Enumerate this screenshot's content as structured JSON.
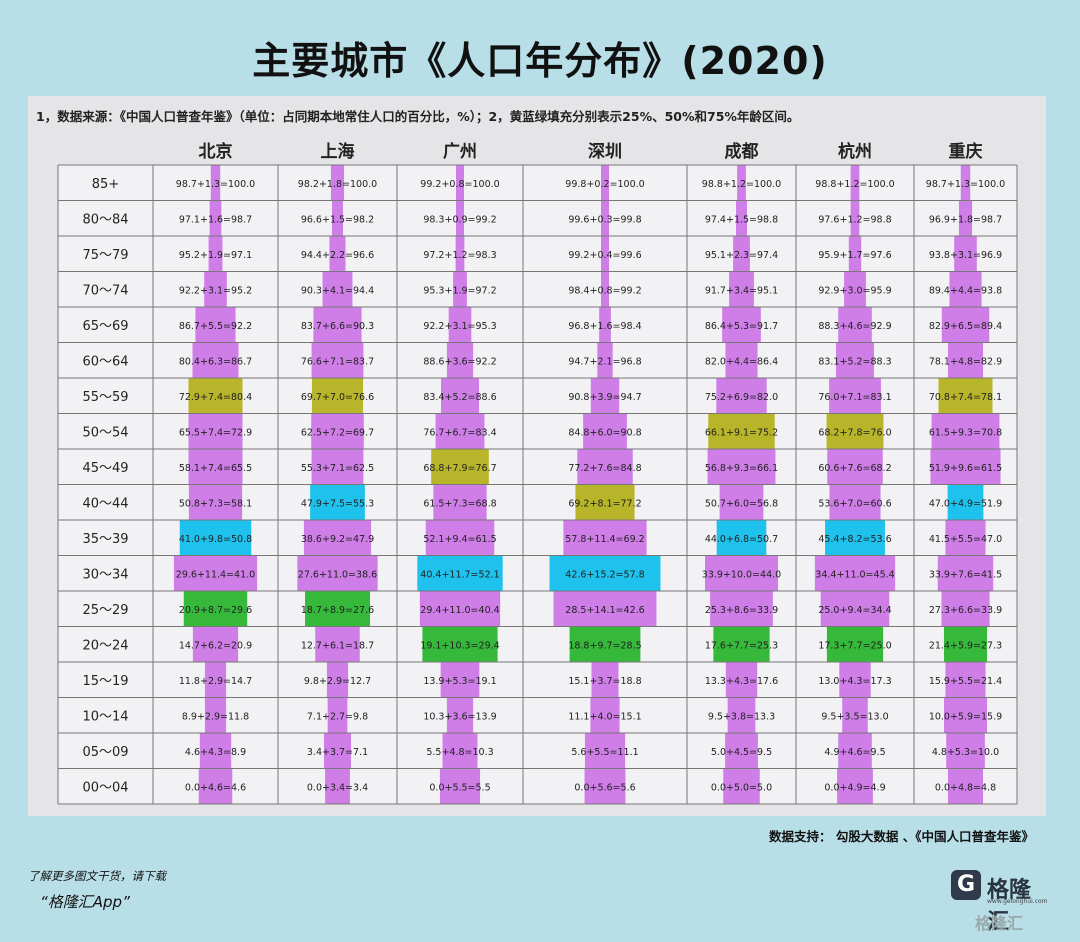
{
  "title": "主要城市《人口年分布》(2020)",
  "note": "1，数据来源：《中国人口普查年鉴》（单位：占同期本地常住人口的百分比，%）；2，黄蓝绿填充分别表示25%、50%和75%年龄区间。",
  "source": "数据支持：  勾股大数据 、《中国人口普查年鉴》",
  "promo_line1": "了解更多图文干货，请下载",
  "promo_line2": "“格隆汇App”",
  "logo": {
    "mark": "G",
    "text": "格隆汇",
    "url": "www.gelonghui.com"
  },
  "corner_mark": "格隆汇",
  "colors": {
    "purple": "#cf7ee8",
    "yellow": "#b9b52a",
    "blue": "#1ec2ec",
    "green": "#36b83a",
    "grid": "#777777"
  },
  "chart_data": {
    "type": "table",
    "age_groups": [
      "85+",
      "80～84",
      "75～79",
      "70～74",
      "65～69",
      "60～64",
      "55～59",
      "50～54",
      "45～49",
      "40～44",
      "35～39",
      "30～34",
      "25～29",
      "20～24",
      "15～19",
      "10～14",
      "05～09",
      "00～04"
    ],
    "cities": [
      {
        "name": "北京",
        "cells": [
          "98.7+1.3=100.0",
          "97.1+1.6=98.7",
          "95.2+1.9=97.1",
          "92.2+3.1=95.2",
          "86.7+5.5=92.2",
          "80.4+6.3=86.7",
          "72.9+7.4=80.4",
          "65.5+7.4=72.9",
          "58.1+7.4=65.5",
          "50.8+7.3=58.1",
          "41.0+9.8=50.8",
          "29.6+11.4=41.0",
          "20.9+8.7=29.6",
          "14.7+6.2=20.9",
          "11.8+2.9=14.7",
          "8.9+2.9=11.8",
          "4.6+4.3=8.9",
          "0.0+4.6=4.6"
        ],
        "values": [
          1.3,
          1.6,
          1.9,
          3.1,
          5.5,
          6.3,
          7.4,
          7.4,
          7.4,
          7.3,
          9.8,
          11.4,
          8.7,
          6.2,
          2.9,
          2.9,
          4.3,
          4.6
        ],
        "highlights": {
          "yellow": 6,
          "blue": 10,
          "green": 12
        }
      },
      {
        "name": "上海",
        "cells": [
          "98.2+1.8=100.0",
          "96.6+1.5=98.2",
          "94.4+2.2=96.6",
          "90.3+4.1=94.4",
          "83.7+6.6=90.3",
          "76.6+7.1=83.7",
          "69.7+7.0=76.6",
          "62.5+7.2=69.7",
          "55.3+7.1=62.5",
          "47.9+7.5=55.3",
          "38.6+9.2=47.9",
          "27.6+11.0=38.6",
          "18.7+8.9=27.6",
          "12.7+6.1=18.7",
          "9.8+2.9=12.7",
          "7.1+2.7=9.8",
          "3.4+3.7=7.1",
          "0.0+3.4=3.4"
        ],
        "values": [
          1.8,
          1.5,
          2.2,
          4.1,
          6.6,
          7.1,
          7.0,
          7.2,
          7.1,
          7.5,
          9.2,
          11.0,
          8.9,
          6.1,
          2.9,
          2.7,
          3.7,
          3.4
        ],
        "highlights": {
          "yellow": 6,
          "blue": 9,
          "green": 12
        }
      },
      {
        "name": "广州",
        "cells": [
          "99.2+0.8=100.0",
          "98.3+0.9=99.2",
          "97.2+1.2=98.3",
          "95.3+1.9=97.2",
          "92.2+3.1=95.3",
          "88.6+3.6=92.2",
          "83.4+5.2=88.6",
          "76.7+6.7=83.4",
          "68.8+7.9=76.7",
          "61.5+7.3=68.8",
          "52.1+9.4=61.5",
          "40.4+11.7=52.1",
          "29.4+11.0=40.4",
          "19.1+10.3=29.4",
          "13.9+5.3=19.1",
          "10.3+3.6=13.9",
          "5.5+4.8=10.3",
          "0.0+5.5=5.5"
        ],
        "values": [
          0.8,
          0.9,
          1.2,
          1.9,
          3.1,
          3.6,
          5.2,
          6.7,
          7.9,
          7.3,
          9.4,
          11.7,
          11.0,
          10.3,
          5.3,
          3.6,
          4.8,
          5.5
        ],
        "highlights": {
          "yellow": 8,
          "blue": 11,
          "green": 13
        }
      },
      {
        "name": "深圳",
        "cells": [
          "99.8+0.2=100.0",
          "99.6+0.3=99.8",
          "99.2+0.4=99.6",
          "98.4+0.8=99.2",
          "96.8+1.6=98.4",
          "94.7+2.1=96.8",
          "90.8+3.9=94.7",
          "84.8+6.0=90.8",
          "77.2+7.6=84.8",
          "69.2+8.1=77.2",
          "57.8+11.4=69.2",
          "42.6+15.2=57.8",
          "28.5+14.1=42.6",
          "18.8+9.7=28.5",
          "15.1+3.7=18.8",
          "11.1+4.0=15.1",
          "5.6+5.5=11.1",
          "0.0+5.6=5.6"
        ],
        "values": [
          0.2,
          0.3,
          0.4,
          0.8,
          1.6,
          2.1,
          3.9,
          6.0,
          7.6,
          8.1,
          11.4,
          15.2,
          14.1,
          9.7,
          3.7,
          4.0,
          5.5,
          5.6
        ],
        "highlights": {
          "yellow": 9,
          "blue": 11,
          "green": 13
        }
      },
      {
        "name": "成都",
        "cells": [
          "98.8+1.2=100.0",
          "97.4+1.5=98.8",
          "95.1+2.3=97.4",
          "91.7+3.4=95.1",
          "86.4+5.3=91.7",
          "82.0+4.4=86.4",
          "75.2+6.9=82.0",
          "66.1+9.1=75.2",
          "56.8+9.3=66.1",
          "50.7+6.0=56.8",
          "44.0+6.8=50.7",
          "33.9+10.0=44.0",
          "25.3+8.6=33.9",
          "17.6+7.7=25.3",
          "13.3+4.3=17.6",
          "9.5+3.8=13.3",
          "5.0+4.5=9.5",
          "0.0+5.0=5.0"
        ],
        "values": [
          1.2,
          1.5,
          2.3,
          3.4,
          5.3,
          4.4,
          6.9,
          9.1,
          9.3,
          6.0,
          6.8,
          10.0,
          8.6,
          7.7,
          4.3,
          3.8,
          4.5,
          5.0
        ],
        "highlights": {
          "yellow": 7,
          "blue": 10,
          "green": 13
        }
      },
      {
        "name": "杭州",
        "cells": [
          "98.8+1.2=100.0",
          "97.6+1.2=98.8",
          "95.9+1.7=97.6",
          "92.9+3.0=95.9",
          "88.3+4.6=92.9",
          "83.1+5.2=88.3",
          "76.0+7.1=83.1",
          "68.2+7.8=76.0",
          "60.6+7.6=68.2",
          "53.6+7.0=60.6",
          "45.4+8.2=53.6",
          "34.4+11.0=45.4",
          "25.0+9.4=34.4",
          "17.3+7.7=25.0",
          "13.0+4.3=17.3",
          "9.5+3.5=13.0",
          "4.9+4.6=9.5",
          "0.0+4.9=4.9"
        ],
        "values": [
          1.2,
          1.2,
          1.7,
          3.0,
          4.6,
          5.2,
          7.1,
          7.8,
          7.6,
          7.0,
          8.2,
          11.0,
          9.4,
          7.7,
          4.3,
          3.5,
          4.6,
          4.9
        ],
        "highlights": {
          "yellow": 7,
          "blue": 10,
          "green": 13
        }
      },
      {
        "name": "重庆",
        "cells": [
          "98.7+1.3=100.0",
          "96.9+1.8=98.7",
          "93.8+3.1=96.9",
          "89.4+4.4=93.8",
          "82.9+6.5=89.4",
          "78.1+4.8=82.9",
          "70.8+7.4=78.1",
          "61.5+9.3=70.8",
          "51.9+9.6=61.5",
          "47.0+4.9=51.9",
          "41.5+5.5=47.0",
          "33.9+7.6=41.5",
          "27.3+6.6=33.9",
          "21.4+5.9=27.3",
          "15.9+5.5=21.4",
          "10.0+5.9=15.9",
          "4.8+5.3=10.0",
          "0.0+4.8=4.8"
        ],
        "values": [
          1.3,
          1.8,
          3.1,
          4.4,
          6.5,
          4.8,
          7.4,
          9.3,
          9.6,
          4.9,
          5.5,
          7.6,
          6.6,
          5.9,
          5.5,
          5.9,
          5.3,
          4.8
        ],
        "highlights": {
          "yellow": 6,
          "blue": 9,
          "green": 13
        }
      }
    ]
  }
}
